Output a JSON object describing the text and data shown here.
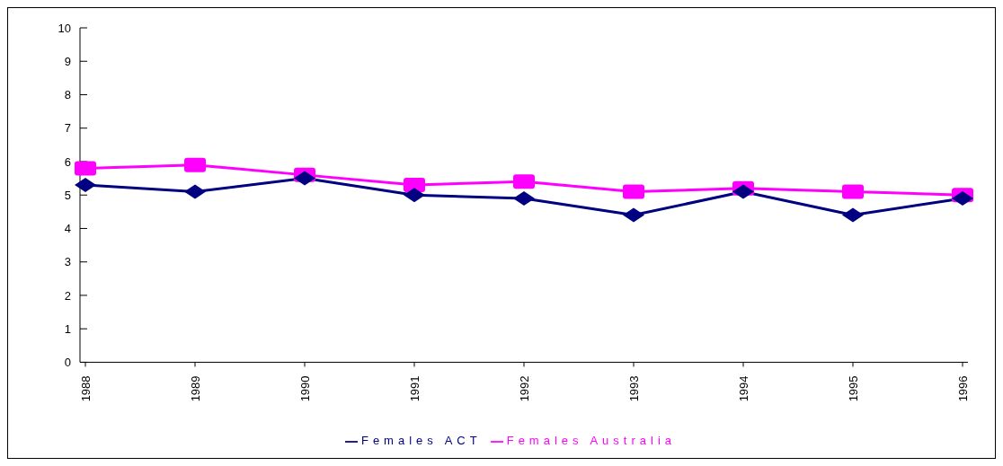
{
  "chart_data": {
    "type": "line",
    "categories": [
      "1988",
      "1989",
      "1990",
      "1991",
      "1992",
      "1993",
      "1994",
      "1995",
      "1996"
    ],
    "series": [
      {
        "name": "Females ACT",
        "color": "#000080",
        "marker": "diamond",
        "values": [
          5.3,
          5.1,
          5.5,
          5.0,
          4.9,
          4.4,
          5.1,
          4.4,
          4.9
        ]
      },
      {
        "name": "Females Australia",
        "color": "#ff00ff",
        "marker": "square",
        "values": [
          5.8,
          5.9,
          5.6,
          5.3,
          5.4,
          5.1,
          5.2,
          5.1,
          5.0
        ]
      }
    ],
    "ylim": [
      0,
      10
    ],
    "yticks": [
      0,
      1,
      2,
      3,
      4,
      5,
      6,
      7,
      8,
      9,
      10
    ],
    "grid": false,
    "legend": "bottom"
  }
}
